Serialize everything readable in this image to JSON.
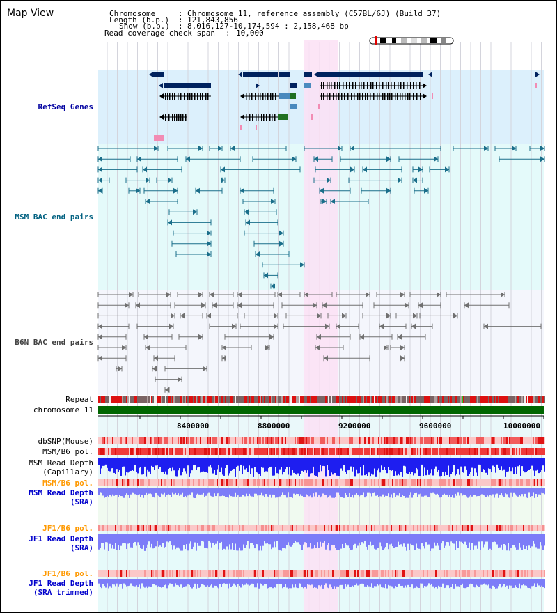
{
  "title": "Map View",
  "header": {
    "rows": [
      {
        "label": "Chromosome",
        "value": "Chromosome 11, reference assembly (C57BL/6J) (Build 37)"
      },
      {
        "label": "Length (b.p.)",
        "value": "121,843,856"
      },
      {
        "label": "Show (b.p.)",
        "value": "8,016,127-10,174,594 : 2,158,468 bp"
      },
      {
        "label": "Read coverage check span",
        "value": "10,000"
      }
    ]
  },
  "tracks": {
    "refseq": {
      "label": "RefSeq Genes",
      "color": "#0000a0"
    },
    "msm_bac": {
      "label": "MSM BAC end pairs",
      "color": "#006080"
    },
    "b6n_bac": {
      "label": "B6N BAC end pairs",
      "color": "#404040"
    },
    "repeat": {
      "label": "Repeat"
    },
    "chromosome": {
      "label": "chromosome 11"
    },
    "dbsnp": {
      "label": "dbSNP(Mouse)"
    },
    "msm_b6_pol_cap": {
      "label": "MSM/B6 pol."
    },
    "msm_depth_cap": {
      "line1": "MSM Read Depth",
      "line2": "(Capillary)"
    },
    "msm_b6_pol_sra": {
      "label": "MSM/B6 pol.",
      "color": "#ff9900"
    },
    "msm_depth_sra": {
      "line1": "MSM Read Depth",
      "line2": "(SRA)",
      "color": "#0000cc"
    },
    "jf1_b6_pol": {
      "label": "JF1/B6 pol.",
      "color": "#ff9900"
    },
    "jf1_depth": {
      "line1": "JF1 Read Depth",
      "line2": "(SRA)",
      "color": "#0000cc"
    },
    "jf1_b6_pol_2": {
      "label": "JF1/B6 pol.",
      "color": "#ff9900"
    },
    "jf1_depth_trim": {
      "line1": "JF1 Read Depth",
      "line2": "(SRA trimmed)",
      "color": "#0000cc"
    }
  },
  "axis": {
    "ticks": [
      "8400000",
      "8800000",
      "9200000",
      "9600000",
      "10000000"
    ]
  },
  "colors": {
    "refseq_bg": "#dcf0fc",
    "msm_bg": "#e4fafa",
    "b6n_bg": "#f4f6fc",
    "highlight": "#fce0f4",
    "gene": "#00225e",
    "msm_pair": "#1a6e8a",
    "b6n_pair": "#707070",
    "chromosome_bar": "#006600",
    "snp": "#f03030",
    "depth_capillary": "#1e1ef0",
    "depth_sra": "#7c7cf8"
  }
}
